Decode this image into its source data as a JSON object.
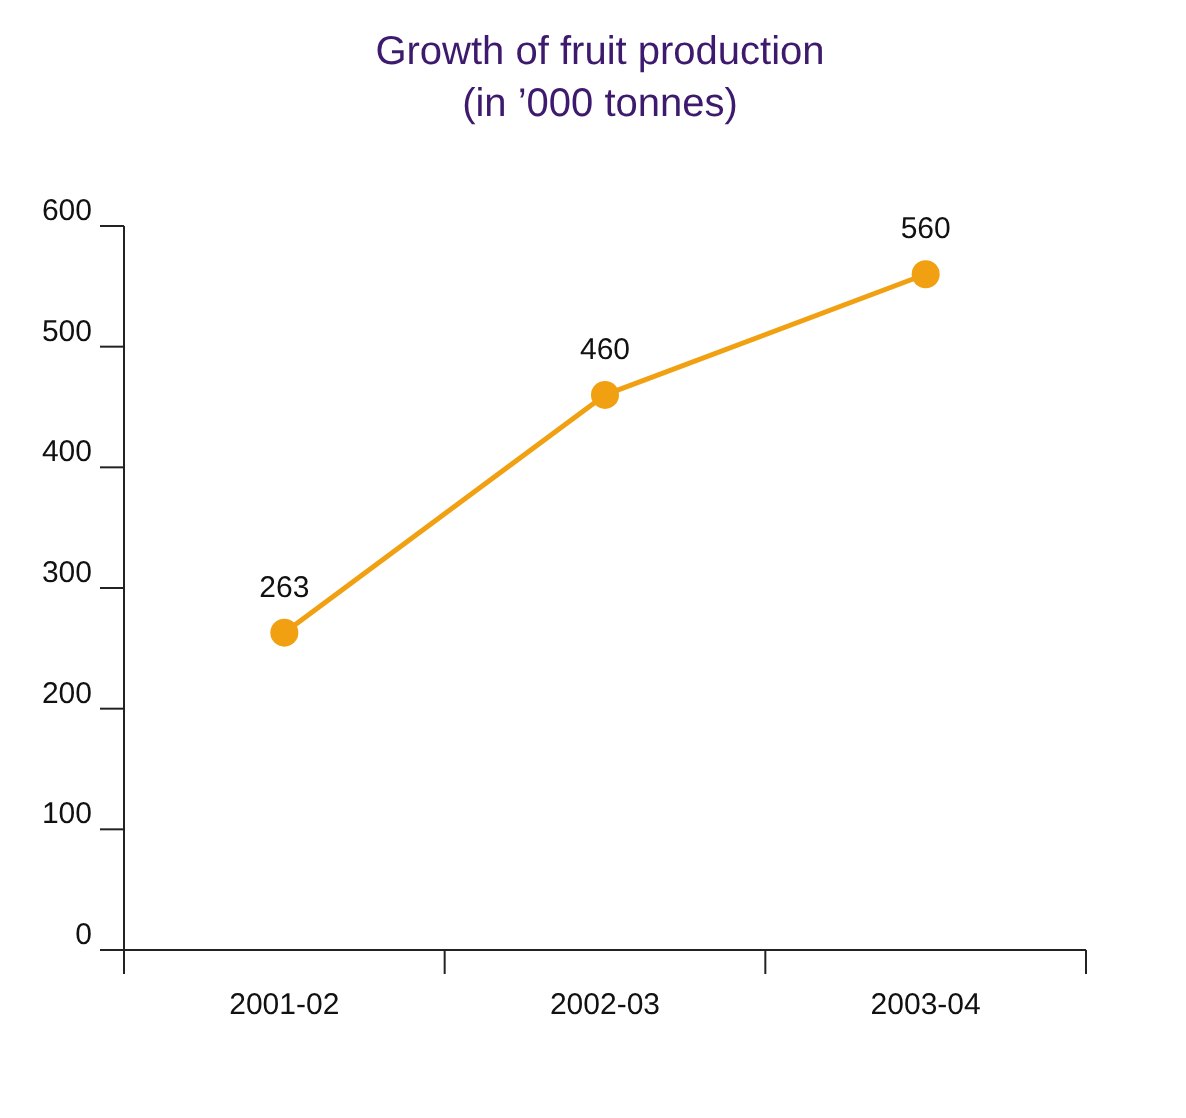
{
  "chart_data": {
    "type": "line",
    "title": "Growth of fruit production",
    "subtitle": "(in ’000 tonnes)",
    "categories": [
      "2001-02",
      "2002-03",
      "2003-04"
    ],
    "series": [
      {
        "color": "#f0a010",
        "values": [
          263,
          460,
          560
        ]
      }
    ],
    "ylim": [
      0,
      600
    ],
    "yticks": [
      0,
      100,
      200,
      300,
      400,
      500,
      600
    ],
    "marker": "circle",
    "data_labels": true
  }
}
